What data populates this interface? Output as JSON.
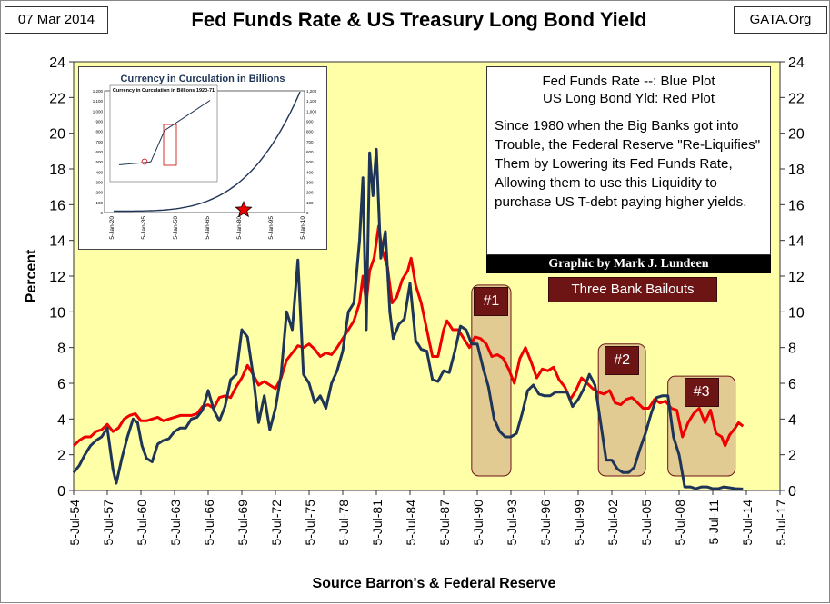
{
  "header": {
    "date": "07 Mar 2014",
    "source": "GATA.Org",
    "title": "Fed Funds Rate & US Treasury Long Bond Yield"
  },
  "legend": {
    "line1": "Fed Funds Rate --:  Blue Plot",
    "line2": "US Long Bond Yld:  Red Plot",
    "description": "Since 1980 when the Big Banks got into Trouble, the Federal Reserve \"Re-Liquifies\" Them by Lowering its Fed Funds Rate, Allowing them to use this Liquidity to purchase US T-debt paying higher  yields."
  },
  "credit": "Graphic by Mark J. Lundeen",
  "bailouts": {
    "title": "Three Bank Bailouts",
    "tags": [
      "#1",
      "#2",
      "#3"
    ]
  },
  "inset": {
    "title": "Currency in Curculation in Billions",
    "inner_title": "Currency in Curculation in Billions 1920-71",
    "y_ticks": [
      "0",
      "100",
      "200",
      "300",
      "400",
      "500",
      "600",
      "700",
      "800",
      "900",
      "1,000",
      "1,100",
      "1,200"
    ],
    "x_ticks": [
      "5-Jan-20",
      "5-Jan-35",
      "5-Jan-50",
      "5-Jan-65",
      "5-Jan-80",
      "5-Jan-95",
      "5-Jan-10"
    ]
  },
  "colors": {
    "plot_bg": "#ffffa8",
    "fed_funds": "#1f3557",
    "long_bond": "#ee0000",
    "box_fill": "#c8a080",
    "tag_fill": "#6d1515"
  },
  "chart_data": {
    "type": "line",
    "ylabel": "Percent",
    "xlabel": "Source Barron's & Federal Reserve",
    "ylim": [
      0,
      24
    ],
    "y_ticks": [
      0,
      2,
      4,
      6,
      8,
      10,
      12,
      14,
      16,
      18,
      20,
      22,
      24
    ],
    "xlim": [
      1954.5,
      2017.5
    ],
    "x_tick_labels": [
      "5-Jul-54",
      "5-Jul-57",
      "5-Jul-60",
      "5-Jul-63",
      "5-Jul-66",
      "5-Jul-69",
      "5-Jul-72",
      "5-Jul-75",
      "5-Jul-78",
      "5-Jul-81",
      "5-Jul-84",
      "5-Jul-87",
      "5-Jul-90",
      "5-Jul-93",
      "5-Jul-96",
      "5-Jul-99",
      "5-Jul-02",
      "5-Jul-05",
      "5-Jul-08",
      "5-Jul-11",
      "5-Jul-14",
      "5-Jul-17"
    ],
    "grid": false,
    "series": [
      {
        "name": "Fed Funds Rate",
        "color": "#1f3557",
        "points": [
          [
            1954.5,
            1.0
          ],
          [
            1955.0,
            1.4
          ],
          [
            1955.5,
            2.0
          ],
          [
            1956.0,
            2.5
          ],
          [
            1956.5,
            2.8
          ],
          [
            1957.0,
            3.0
          ],
          [
            1957.5,
            3.5
          ],
          [
            1958.0,
            1.2
          ],
          [
            1958.3,
            0.4
          ],
          [
            1958.8,
            1.8
          ],
          [
            1959.3,
            3.0
          ],
          [
            1959.8,
            4.0
          ],
          [
            1960.2,
            3.8
          ],
          [
            1960.6,
            2.5
          ],
          [
            1961.0,
            1.8
          ],
          [
            1961.5,
            1.6
          ],
          [
            1962.0,
            2.6
          ],
          [
            1962.5,
            2.8
          ],
          [
            1963.0,
            2.9
          ],
          [
            1963.5,
            3.3
          ],
          [
            1964.0,
            3.5
          ],
          [
            1964.5,
            3.5
          ],
          [
            1965.0,
            4.0
          ],
          [
            1965.5,
            4.1
          ],
          [
            1966.0,
            4.5
          ],
          [
            1966.5,
            5.6
          ],
          [
            1967.0,
            4.5
          ],
          [
            1967.5,
            3.9
          ],
          [
            1968.0,
            4.7
          ],
          [
            1968.5,
            6.2
          ],
          [
            1969.0,
            6.5
          ],
          [
            1969.5,
            9.0
          ],
          [
            1970.0,
            8.6
          ],
          [
            1970.5,
            6.5
          ],
          [
            1971.0,
            3.8
          ],
          [
            1971.5,
            5.3
          ],
          [
            1972.0,
            3.4
          ],
          [
            1972.5,
            4.6
          ],
          [
            1973.0,
            6.5
          ],
          [
            1973.5,
            10.0
          ],
          [
            1974.0,
            9.0
          ],
          [
            1974.5,
            12.9
          ],
          [
            1975.0,
            6.5
          ],
          [
            1975.5,
            6.0
          ],
          [
            1976.0,
            4.9
          ],
          [
            1976.5,
            5.3
          ],
          [
            1977.0,
            4.6
          ],
          [
            1977.5,
            6.0
          ],
          [
            1978.0,
            6.7
          ],
          [
            1978.5,
            7.8
          ],
          [
            1979.0,
            10.0
          ],
          [
            1979.5,
            10.5
          ],
          [
            1980.0,
            14.0
          ],
          [
            1980.3,
            17.5
          ],
          [
            1980.6,
            9.0
          ],
          [
            1980.9,
            18.9
          ],
          [
            1981.2,
            16.5
          ],
          [
            1981.5,
            19.1
          ],
          [
            1981.9,
            13.0
          ],
          [
            1982.3,
            14.5
          ],
          [
            1982.7,
            10.0
          ],
          [
            1983.0,
            8.5
          ],
          [
            1983.5,
            9.3
          ],
          [
            1984.0,
            9.6
          ],
          [
            1984.5,
            11.6
          ],
          [
            1985.0,
            8.4
          ],
          [
            1985.5,
            7.9
          ],
          [
            1986.0,
            7.8
          ],
          [
            1986.5,
            6.2
          ],
          [
            1987.0,
            6.1
          ],
          [
            1987.5,
            6.7
          ],
          [
            1988.0,
            6.6
          ],
          [
            1988.5,
            7.8
          ],
          [
            1989.0,
            9.2
          ],
          [
            1989.5,
            9.0
          ],
          [
            1990.0,
            8.2
          ],
          [
            1990.5,
            8.2
          ],
          [
            1991.0,
            6.9
          ],
          [
            1991.5,
            5.8
          ],
          [
            1992.0,
            4.0
          ],
          [
            1992.5,
            3.3
          ],
          [
            1993.0,
            3.0
          ],
          [
            1993.5,
            3.0
          ],
          [
            1994.0,
            3.2
          ],
          [
            1994.5,
            4.3
          ],
          [
            1995.0,
            5.6
          ],
          [
            1995.5,
            5.9
          ],
          [
            1996.0,
            5.4
          ],
          [
            1996.5,
            5.3
          ],
          [
            1997.0,
            5.3
          ],
          [
            1997.5,
            5.5
          ],
          [
            1998.0,
            5.5
          ],
          [
            1998.5,
            5.5
          ],
          [
            1999.0,
            4.7
          ],
          [
            1999.5,
            5.1
          ],
          [
            2000.0,
            5.7
          ],
          [
            2000.5,
            6.5
          ],
          [
            2001.0,
            5.9
          ],
          [
            2001.5,
            3.8
          ],
          [
            2002.0,
            1.7
          ],
          [
            2002.5,
            1.7
          ],
          [
            2003.0,
            1.2
          ],
          [
            2003.5,
            1.0
          ],
          [
            2004.0,
            1.0
          ],
          [
            2004.5,
            1.3
          ],
          [
            2005.0,
            2.3
          ],
          [
            2005.5,
            3.2
          ],
          [
            2006.0,
            4.3
          ],
          [
            2006.5,
            5.2
          ],
          [
            2007.0,
            5.3
          ],
          [
            2007.5,
            5.3
          ],
          [
            2008.0,
            3.0
          ],
          [
            2008.5,
            2.0
          ],
          [
            2009.0,
            0.2
          ],
          [
            2009.5,
            0.2
          ],
          [
            2010.0,
            0.1
          ],
          [
            2010.5,
            0.2
          ],
          [
            2011.0,
            0.2
          ],
          [
            2011.5,
            0.1
          ],
          [
            2012.0,
            0.1
          ],
          [
            2012.5,
            0.2
          ],
          [
            2013.0,
            0.15
          ],
          [
            2013.5,
            0.1
          ],
          [
            2014.2,
            0.08
          ]
        ]
      },
      {
        "name": "US Long Bond Yld",
        "color": "#ee0000",
        "points": [
          [
            1954.5,
            2.5
          ],
          [
            1955.0,
            2.8
          ],
          [
            1955.5,
            3.0
          ],
          [
            1956.0,
            3.0
          ],
          [
            1956.5,
            3.3
          ],
          [
            1957.0,
            3.4
          ],
          [
            1957.5,
            3.7
          ],
          [
            1958.0,
            3.3
          ],
          [
            1958.5,
            3.5
          ],
          [
            1959.0,
            4.0
          ],
          [
            1959.5,
            4.2
          ],
          [
            1960.0,
            4.3
          ],
          [
            1960.5,
            3.9
          ],
          [
            1961.0,
            3.9
          ],
          [
            1961.5,
            4.0
          ],
          [
            1962.0,
            4.1
          ],
          [
            1962.5,
            3.9
          ],
          [
            1963.0,
            4.0
          ],
          [
            1963.5,
            4.1
          ],
          [
            1964.0,
            4.2
          ],
          [
            1964.5,
            4.2
          ],
          [
            1965.0,
            4.2
          ],
          [
            1965.5,
            4.3
          ],
          [
            1966.0,
            4.7
          ],
          [
            1966.5,
            4.8
          ],
          [
            1967.0,
            4.6
          ],
          [
            1967.5,
            5.2
          ],
          [
            1968.0,
            5.3
          ],
          [
            1968.5,
            5.2
          ],
          [
            1969.0,
            5.8
          ],
          [
            1969.5,
            6.3
          ],
          [
            1970.0,
            7.0
          ],
          [
            1970.5,
            6.5
          ],
          [
            1971.0,
            5.9
          ],
          [
            1971.5,
            6.1
          ],
          [
            1972.0,
            5.9
          ],
          [
            1972.5,
            5.7
          ],
          [
            1973.0,
            6.3
          ],
          [
            1973.5,
            7.3
          ],
          [
            1974.0,
            7.7
          ],
          [
            1974.5,
            8.1
          ],
          [
            1975.0,
            8.0
          ],
          [
            1975.5,
            8.2
          ],
          [
            1976.0,
            7.9
          ],
          [
            1976.5,
            7.5
          ],
          [
            1977.0,
            7.7
          ],
          [
            1977.5,
            7.6
          ],
          [
            1978.0,
            8.0
          ],
          [
            1978.5,
            8.5
          ],
          [
            1979.0,
            9.0
          ],
          [
            1979.5,
            9.5
          ],
          [
            1980.0,
            10.5
          ],
          [
            1980.3,
            12.0
          ],
          [
            1980.6,
            10.5
          ],
          [
            1980.9,
            12.3
          ],
          [
            1981.3,
            13.0
          ],
          [
            1981.7,
            14.8
          ],
          [
            1982.0,
            13.5
          ],
          [
            1982.5,
            12.5
          ],
          [
            1982.9,
            10.5
          ],
          [
            1983.3,
            10.8
          ],
          [
            1983.8,
            11.8
          ],
          [
            1984.3,
            12.3
          ],
          [
            1984.6,
            13.0
          ],
          [
            1985.0,
            11.5
          ],
          [
            1985.5,
            10.5
          ],
          [
            1986.0,
            9.0
          ],
          [
            1986.5,
            7.5
          ],
          [
            1987.0,
            7.5
          ],
          [
            1987.5,
            9.0
          ],
          [
            1987.8,
            9.5
          ],
          [
            1988.3,
            9.0
          ],
          [
            1988.8,
            9.0
          ],
          [
            1989.3,
            8.5
          ],
          [
            1989.8,
            8.0
          ],
          [
            1990.3,
            8.6
          ],
          [
            1990.8,
            8.5
          ],
          [
            1991.3,
            8.2
          ],
          [
            1991.8,
            7.5
          ],
          [
            1992.3,
            7.6
          ],
          [
            1992.8,
            7.4
          ],
          [
            1993.3,
            6.8
          ],
          [
            1993.8,
            6.0
          ],
          [
            1994.3,
            7.4
          ],
          [
            1994.8,
            8.0
          ],
          [
            1995.3,
            7.2
          ],
          [
            1995.8,
            6.3
          ],
          [
            1996.3,
            6.8
          ],
          [
            1996.8,
            6.7
          ],
          [
            1997.3,
            6.9
          ],
          [
            1997.8,
            6.2
          ],
          [
            1998.3,
            5.8
          ],
          [
            1998.8,
            5.1
          ],
          [
            1999.3,
            5.6
          ],
          [
            1999.8,
            6.3
          ],
          [
            2000.3,
            6.0
          ],
          [
            2000.8,
            5.7
          ],
          [
            2001.3,
            5.5
          ],
          [
            2001.8,
            5.4
          ],
          [
            2002.3,
            5.6
          ],
          [
            2002.8,
            4.9
          ],
          [
            2003.3,
            4.8
          ],
          [
            2003.8,
            5.1
          ],
          [
            2004.3,
            5.2
          ],
          [
            2004.8,
            4.9
          ],
          [
            2005.3,
            4.6
          ],
          [
            2005.8,
            4.6
          ],
          [
            2006.3,
            5.1
          ],
          [
            2006.8,
            4.9
          ],
          [
            2007.3,
            5.0
          ],
          [
            2007.8,
            4.6
          ],
          [
            2008.3,
            4.5
          ],
          [
            2008.8,
            3.0
          ],
          [
            2009.3,
            3.8
          ],
          [
            2009.8,
            4.3
          ],
          [
            2010.3,
            4.6
          ],
          [
            2010.8,
            3.8
          ],
          [
            2011.3,
            4.5
          ],
          [
            2011.8,
            3.2
          ],
          [
            2012.3,
            3.0
          ],
          [
            2012.6,
            2.5
          ],
          [
            2013.0,
            3.1
          ],
          [
            2013.5,
            3.5
          ],
          [
            2013.8,
            3.8
          ],
          [
            2014.2,
            3.6
          ]
        ]
      }
    ],
    "highlight_periods": [
      {
        "label": "#1",
        "start": 1990.0,
        "end": 1993.5,
        "y_top": 11.5
      },
      {
        "label": "#2",
        "start": 2001.3,
        "end": 2005.5,
        "y_top": 8.2
      },
      {
        "label": "#3",
        "start": 2007.5,
        "end": 2013.5,
        "y_top": 6.4
      }
    ]
  }
}
